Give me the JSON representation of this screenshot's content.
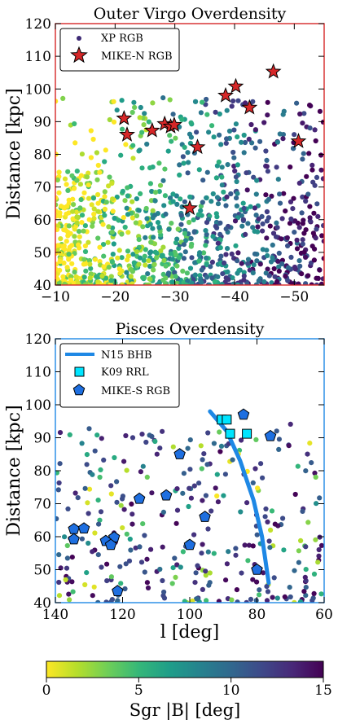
{
  "chart_data": [
    {
      "type": "scatter",
      "title": "Outer Virgo Overdensity",
      "frame_color": "#d62728",
      "xlabel": "",
      "ylabel": "Distance [kpc]",
      "xlim": [
        -10,
        -55
      ],
      "ylim": [
        40,
        120
      ],
      "xticks": [
        -10,
        -20,
        -30,
        -40,
        -50
      ],
      "yticks": [
        40,
        50,
        60,
        70,
        80,
        90,
        100,
        110,
        120
      ],
      "legend": {
        "position": "top-left",
        "entries": [
          "XP RGB",
          "MIKE-N RGB"
        ]
      },
      "series": [
        {
          "name": "MIKE-N RGB",
          "marker": "star",
          "color": "#d62728",
          "points": [
            {
              "x": -21.5,
              "y": 91
            },
            {
              "x": -22,
              "y": 86
            },
            {
              "x": -26.2,
              "y": 87.3
            },
            {
              "x": -28.3,
              "y": 89.3
            },
            {
              "x": -29.3,
              "y": 88.5
            },
            {
              "x": -29.9,
              "y": 89
            },
            {
              "x": -33.8,
              "y": 82.2
            },
            {
              "x": -32.5,
              "y": 63.5
            },
            {
              "x": -38.5,
              "y": 98
            },
            {
              "x": -40.2,
              "y": 100.8
            },
            {
              "x": -42.5,
              "y": 94.3
            },
            {
              "x": -46.5,
              "y": 105.3
            },
            {
              "x": -50.7,
              "y": 84
            }
          ]
        }
      ],
      "points_note_region": "XP RGB: dense field of points colored by Sgr |B| (0 yellow to 15 purple); yellow/green at l>-30, purple at l<-35"
    },
    {
      "type": "scatter",
      "title": "Pisces Overdensity",
      "frame_color": "#1e88e5",
      "xlabel": "l [deg]",
      "ylabel": "Distance [kpc]",
      "xlim": [
        140,
        60
      ],
      "ylim": [
        40,
        120
      ],
      "xticks": [
        140,
        120,
        100,
        80,
        60
      ],
      "yticks": [
        40,
        50,
        60,
        70,
        80,
        90,
        100,
        110,
        120
      ],
      "legend": {
        "position": "top-left",
        "entries": [
          "N15 BHB",
          "K09 RRL",
          "MIKE-S RGB"
        ]
      },
      "series": [
        {
          "name": "N15 BHB",
          "marker": "line",
          "color": "#1e88e5",
          "points": [
            {
              "x": 94,
              "y": 98
            },
            {
              "x": 89,
              "y": 92
            },
            {
              "x": 85,
              "y": 83
            },
            {
              "x": 81,
              "y": 71
            },
            {
              "x": 78.5,
              "y": 60
            },
            {
              "x": 76.5,
              "y": 46
            }
          ]
        },
        {
          "name": "K09 RRL",
          "marker": "square",
          "color": "#00e5ff",
          "points": [
            {
              "x": 90.5,
              "y": 95.5
            },
            {
              "x": 89,
              "y": 95.5
            },
            {
              "x": 88,
              "y": 91.2
            },
            {
              "x": 83,
              "y": 91.2
            }
          ]
        },
        {
          "name": "MIKE-S RGB",
          "marker": "pentagon",
          "color": "#1e6fe0",
          "points": [
            {
              "x": 84,
              "y": 97
            },
            {
              "x": 76,
              "y": 90.5
            },
            {
              "x": 103,
              "y": 85
            },
            {
              "x": 115,
              "y": 71.5
            },
            {
              "x": 107,
              "y": 72.5
            },
            {
              "x": 95.5,
              "y": 66
            },
            {
              "x": 134.5,
              "y": 62.3
            },
            {
              "x": 131.5,
              "y": 62.5
            },
            {
              "x": 134.5,
              "y": 59.2
            },
            {
              "x": 122.5,
              "y": 59.8
            },
            {
              "x": 125,
              "y": 58.7
            },
            {
              "x": 123.5,
              "y": 57.5
            },
            {
              "x": 100,
              "y": 57.5
            },
            {
              "x": 121.5,
              "y": 43.5
            },
            {
              "x": 80,
              "y": 50
            }
          ]
        }
      ]
    }
  ],
  "colorbar": {
    "label": "Sgr |B| [deg]",
    "range": [
      0,
      15
    ],
    "ticks": [
      0,
      5,
      10,
      15
    ],
    "colormap": [
      "#fde725",
      "#b5de2b",
      "#6ece58",
      "#35b779",
      "#1f9e89",
      "#26828e",
      "#31688e",
      "#3e4989",
      "#482878",
      "#440154"
    ]
  }
}
